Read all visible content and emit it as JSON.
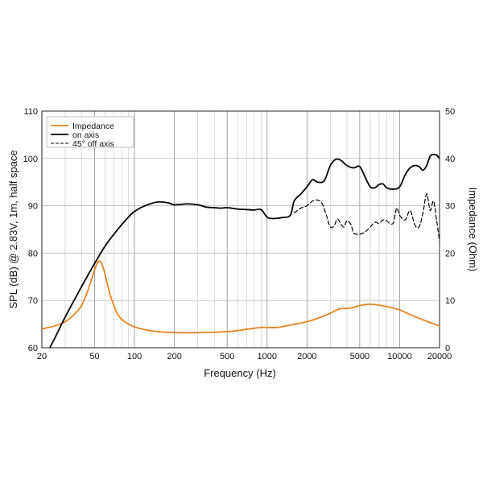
{
  "chart_data": {
    "type": "line",
    "xlabel": "Frequency (Hz)",
    "ylabel": "SPL (dB) @ 2.83V, 1m, half space",
    "y2label": "Impedance (Ohm)",
    "x_scale": "log",
    "xlim": [
      20,
      20000
    ],
    "ylim": [
      60,
      110
    ],
    "y2lim": [
      0,
      50
    ],
    "grid": true,
    "legend_position": "top-left",
    "x_ticks": [
      20,
      50,
      100,
      200,
      500,
      1000,
      2000,
      5000,
      10000,
      20000
    ],
    "x_tick_labels": [
      "20",
      "50",
      "100",
      "200",
      "500",
      "1000",
      "2000",
      "5000",
      "10000",
      "20000"
    ],
    "y_ticks": [
      60,
      70,
      80,
      90,
      100,
      110
    ],
    "y_tick_labels": [
      "60",
      "70",
      "80",
      "90",
      "100",
      "110"
    ],
    "y2_ticks": [
      0,
      10,
      20,
      30,
      40,
      50
    ],
    "y2_tick_labels": [
      "0",
      "10",
      "20",
      "30",
      "40",
      "50"
    ],
    "series": [
      {
        "name": "Impedance",
        "axis": "right",
        "color": "#e8821e",
        "style": "solid",
        "x": [
          20,
          25,
          30,
          35,
          40,
          45,
          50,
          53,
          55,
          57,
          60,
          65,
          70,
          75,
          80,
          90,
          100,
          120,
          150,
          200,
          300,
          500,
          700,
          900,
          1000,
          1200,
          1500,
          2000,
          2500,
          3000,
          3500,
          4000,
          4500,
          5000,
          6000,
          7000,
          8000,
          10000,
          12000,
          15000,
          20000
        ],
        "y": [
          4.0,
          4.6,
          5.5,
          7.0,
          9.0,
          12.5,
          16.5,
          18.2,
          18.2,
          17.5,
          15.5,
          11.5,
          8.8,
          7.0,
          6.0,
          5.0,
          4.4,
          3.8,
          3.4,
          3.2,
          3.2,
          3.4,
          3.9,
          4.3,
          4.3,
          4.3,
          4.8,
          5.5,
          6.4,
          7.3,
          8.2,
          8.3,
          8.5,
          8.9,
          9.2,
          9.0,
          8.7,
          8.0,
          7.0,
          5.9,
          4.6
        ]
      },
      {
        "name": "on axis",
        "axis": "left",
        "color": "#000000",
        "style": "solid",
        "x": [
          22,
          25,
          30,
          35,
          40,
          50,
          60,
          70,
          80,
          90,
          100,
          120,
          150,
          180,
          200,
          250,
          300,
          350,
          400,
          450,
          500,
          600,
          700,
          800,
          900,
          1000,
          1100,
          1300,
          1500,
          1600,
          1800,
          2000,
          2200,
          2400,
          2700,
          3000,
          3300,
          3600,
          4000,
          4500,
          5000,
          5500,
          6000,
          6500,
          7000,
          7500,
          8000,
          9000,
          10000,
          11000,
          12000,
          13000,
          14000,
          15000,
          16000,
          17000,
          18000,
          19000,
          20000
        ],
        "y": [
          59.0,
          62.0,
          66.5,
          70.0,
          73.0,
          77.8,
          81.5,
          84.0,
          86.0,
          87.6,
          88.8,
          90.0,
          90.8,
          90.6,
          90.2,
          90.4,
          90.2,
          89.7,
          89.6,
          89.5,
          89.6,
          89.3,
          89.2,
          89.1,
          89.2,
          87.6,
          87.3,
          87.5,
          88.0,
          91.0,
          92.5,
          94.0,
          95.5,
          95.0,
          95.3,
          98.5,
          99.8,
          99.6,
          98.5,
          98.0,
          98.3,
          96.0,
          94.0,
          93.8,
          94.5,
          94.6,
          93.8,
          93.5,
          94.0,
          96.5,
          98.0,
          98.5,
          98.3,
          97.5,
          98.5,
          100.5,
          100.8,
          100.7,
          100.0
        ]
      },
      {
        "name": "45° off axis",
        "axis": "left",
        "color": "#000000",
        "style": "dashed",
        "x": [
          1600,
          1800,
          2000,
          2200,
          2400,
          2600,
          2800,
          3000,
          3200,
          3400,
          3600,
          3800,
          4000,
          4300,
          4500,
          5000,
          5500,
          6000,
          6500,
          7000,
          7500,
          8000,
          8500,
          9000,
          9500,
          10000,
          11000,
          12000,
          13000,
          14000,
          15000,
          16000,
          17000,
          18000,
          19000,
          20000
        ],
        "y": [
          88.5,
          89.5,
          90.0,
          91.0,
          91.2,
          90.5,
          88.0,
          85.5,
          85.8,
          87.2,
          86.2,
          85.5,
          86.8,
          86.0,
          84.2,
          84.0,
          84.5,
          85.5,
          86.5,
          86.3,
          87.0,
          86.8,
          86.2,
          86.5,
          89.5,
          88.0,
          87.0,
          89.0,
          86.0,
          85.5,
          88.5,
          92.5,
          89.0,
          91.0,
          87.0,
          82.5
        ]
      }
    ]
  }
}
